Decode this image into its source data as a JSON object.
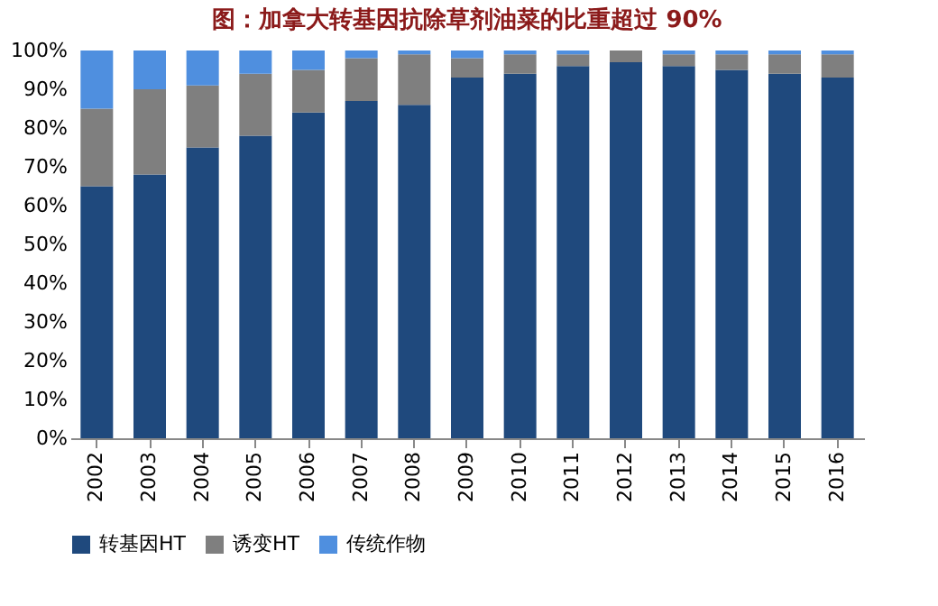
{
  "chart_data": {
    "type": "bar",
    "stacked": true,
    "title": "图：加拿大转基因抗除草剂油菜的比重超过 90%",
    "categories": [
      "2002",
      "2003",
      "2004",
      "2005",
      "2006",
      "2007",
      "2008",
      "2009",
      "2010",
      "2011",
      "2012",
      "2013",
      "2014",
      "2015",
      "2016"
    ],
    "series": [
      {
        "name": "转基因HT",
        "color": "#1f497d",
        "values": [
          65,
          68,
          75,
          78,
          84,
          87,
          86,
          93,
          94,
          96,
          97,
          96,
          95,
          94,
          93
        ]
      },
      {
        "name": "诱变HT",
        "color": "#7f7f7f",
        "values": [
          20,
          22,
          16,
          16,
          11,
          11,
          13,
          5,
          5,
          3,
          3,
          3,
          4,
          5,
          6
        ]
      },
      {
        "name": "传统作物",
        "color": "#4f8fdf",
        "values": [
          15,
          10,
          9,
          6,
          5,
          2,
          1,
          2,
          1,
          1,
          0,
          1,
          1,
          1,
          1
        ]
      }
    ],
    "ylim": [
      0,
      100
    ],
    "yticks": [
      {
        "value": 0,
        "label": "0%"
      },
      {
        "value": 10,
        "label": "10%"
      },
      {
        "value": 20,
        "label": "20%"
      },
      {
        "value": 30,
        "label": "30%"
      },
      {
        "value": 40,
        "label": "40%"
      },
      {
        "value": 50,
        "label": "50%"
      },
      {
        "value": 60,
        "label": "60%"
      },
      {
        "value": 70,
        "label": "70%"
      },
      {
        "value": 80,
        "label": "80%"
      },
      {
        "value": 90,
        "label": "90%"
      },
      {
        "value": 100,
        "label": "100%"
      }
    ],
    "grid": false,
    "legend": "bottom"
  }
}
